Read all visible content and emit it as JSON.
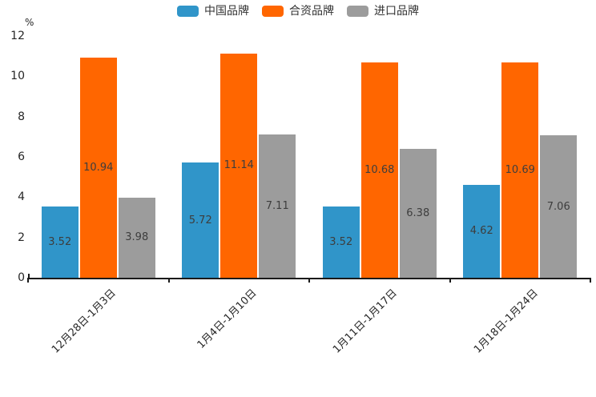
{
  "chart_data": {
    "type": "bar",
    "title": "",
    "unit_label": "%",
    "categories": [
      "12月28日-1月3日",
      "1月4日-1月10日",
      "1月11日-1月17日",
      "1月18日-1月24日"
    ],
    "series": [
      {
        "name": "中国品牌",
        "color": "#3095C9",
        "values": [
          3.52,
          5.72,
          3.52,
          4.62
        ]
      },
      {
        "name": "合资品牌",
        "color": "#FF6600",
        "values": [
          10.94,
          11.14,
          10.68,
          10.69
        ]
      },
      {
        "name": "进口品牌",
        "color": "#9C9C9C",
        "values": [
          3.98,
          7.11,
          6.38,
          7.06
        ]
      }
    ],
    "yticks": [
      0,
      2,
      4,
      6,
      8,
      10,
      12
    ],
    "ylim": [
      0,
      12
    ],
    "grid": false,
    "legend_position": "top",
    "value_label_color": "#3d3d3d",
    "axis_color": "#1a1a1a"
  }
}
